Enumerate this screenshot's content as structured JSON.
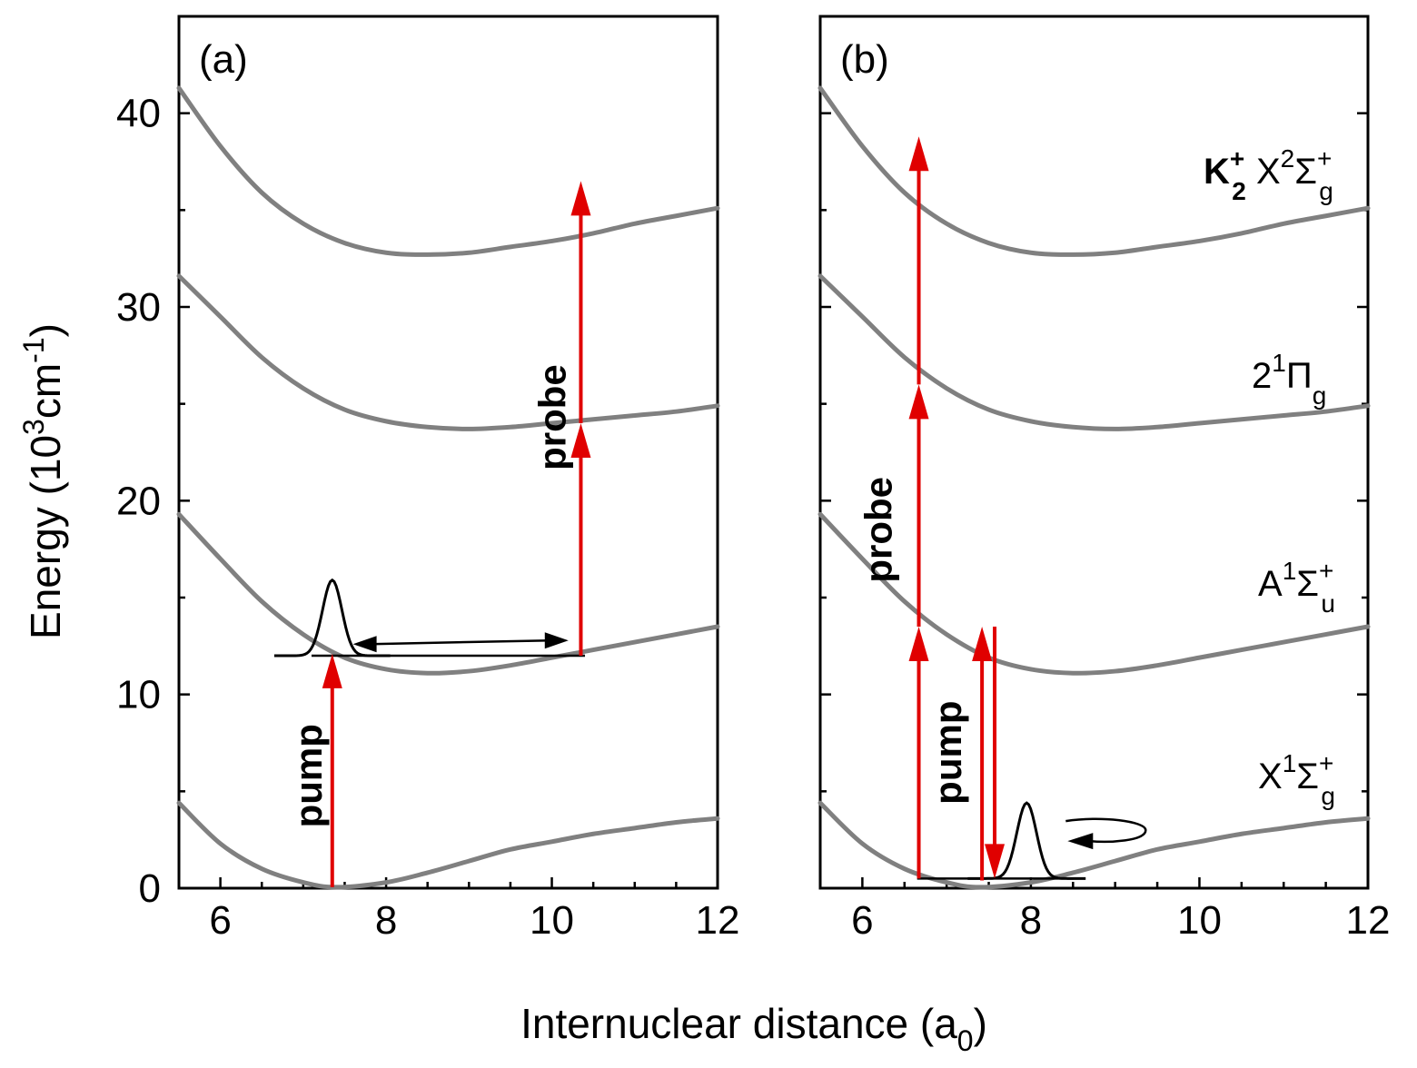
{
  "chart_data": {
    "type": "line",
    "xlabel": "Internuclear distance (a",
    "xlabel_subscript": "0",
    "xlabel_close": ")",
    "ylabel": {
      "prefix": "Energy (10",
      "sup1": "3",
      "mid": "cm",
      "sup2": "-1",
      "suffix": ")"
    },
    "xlim": [
      5.5,
      12
    ],
    "ylim": [
      0,
      45
    ],
    "xticks": [
      6,
      8,
      10,
      12
    ],
    "yticks": [
      0,
      10,
      20,
      30,
      40
    ],
    "curve_color": "#808080",
    "arrow_color": "#e00000",
    "states": [
      {
        "name": "X1Σg+",
        "label": {
          "main": "X",
          "sup": "1",
          "greek": "Σ",
          "sub": "g",
          "sup2": "+"
        },
        "x": [
          5.5,
          6.0,
          6.5,
          7.0,
          7.4,
          8.0,
          8.5,
          9.0,
          9.5,
          10.0,
          10.5,
          11.0,
          11.5,
          12.0
        ],
        "y": [
          4.4,
          2.3,
          1.0,
          0.3,
          0.05,
          0.3,
          0.8,
          1.4,
          2.0,
          2.4,
          2.8,
          3.1,
          3.4,
          3.6
        ]
      },
      {
        "name": "A1Σu+",
        "label": {
          "main": "A",
          "sup": "1",
          "greek": "Σ",
          "sub": "u",
          "sup2": "+"
        },
        "x": [
          5.5,
          6.0,
          6.5,
          7.0,
          7.5,
          8.0,
          8.5,
          9.0,
          9.5,
          10.0,
          10.5,
          11.0,
          11.5,
          12.0
        ],
        "y": [
          19.3,
          17.0,
          14.8,
          13.1,
          11.9,
          11.3,
          11.1,
          11.2,
          11.5,
          11.9,
          12.3,
          12.7,
          13.1,
          13.5
        ]
      },
      {
        "name": "21Πg",
        "label": {
          "main": "2",
          "sup": "1",
          "greek": "Π",
          "sub": "g",
          "sup2": ""
        },
        "x": [
          5.5,
          6.0,
          6.5,
          7.0,
          7.5,
          8.0,
          8.5,
          9.0,
          9.5,
          10.0,
          10.5,
          11.0,
          11.5,
          12.0
        ],
        "y": [
          31.6,
          29.5,
          27.4,
          25.8,
          24.7,
          24.1,
          23.8,
          23.7,
          23.8,
          24.0,
          24.2,
          24.4,
          24.6,
          24.9
        ]
      },
      {
        "name": "K2+ X2Σg+",
        "label": {
          "main": "K",
          "main_sub": "2",
          "main_sup": "+",
          "main2": " X",
          "sup": "2",
          "greek": "Σ",
          "sub": "g",
          "sup2": "+"
        },
        "x": [
          5.5,
          6.0,
          6.5,
          7.0,
          7.5,
          8.0,
          8.5,
          9.0,
          9.5,
          10.0,
          10.5,
          11.0,
          11.5,
          12.0
        ],
        "y": [
          41.3,
          38.3,
          35.9,
          34.3,
          33.3,
          32.8,
          32.7,
          32.8,
          33.1,
          33.4,
          33.8,
          34.3,
          34.7,
          35.1
        ]
      }
    ],
    "panels": [
      {
        "tag": "(a)",
        "pump_label": "pump",
        "probe_label": "probe",
        "pump_arrow": {
          "x": 7.35,
          "from": 0.05,
          "to": 12.1
        },
        "probe_arrows": [
          {
            "x": 10.35,
            "from": 12.0,
            "to": 24.0
          },
          {
            "x": 10.35,
            "from": 24.0,
            "to": 36.5
          }
        ],
        "wavepacket": {
          "x0": 7.35,
          "base": 12.0,
          "height": 3.9,
          "width": 0.22
        },
        "double_arrow": {
          "x1": 7.6,
          "x2": 10.2,
          "y": 12.6
        },
        "baseline": {
          "x1": 7.1,
          "x2": 10.4,
          "y": 12.0
        }
      },
      {
        "tag": "(b)",
        "pump_label": "pump",
        "probe_label": "probe",
        "pump_arrows": [
          {
            "x": 7.42,
            "from": 0.4,
            "to": 13.5
          },
          {
            "x": 7.57,
            "from": 13.5,
            "to": 0.5
          }
        ],
        "probe_arrows": [
          {
            "x": 6.67,
            "from": 0.5,
            "to": 13.5
          },
          {
            "x": 6.67,
            "from": 13.5,
            "to": 26.0
          },
          {
            "x": 6.67,
            "from": 26.0,
            "to": 38.8
          }
        ],
        "wavepacket": {
          "x0": 7.95,
          "base": 0.5,
          "height": 3.9,
          "width": 0.22
        },
        "baseline": {
          "x1": 6.65,
          "x2": 8.5,
          "y": 0.5
        },
        "curl_arrow": {
          "x": 8.5,
          "y": 2.9
        }
      }
    ]
  }
}
